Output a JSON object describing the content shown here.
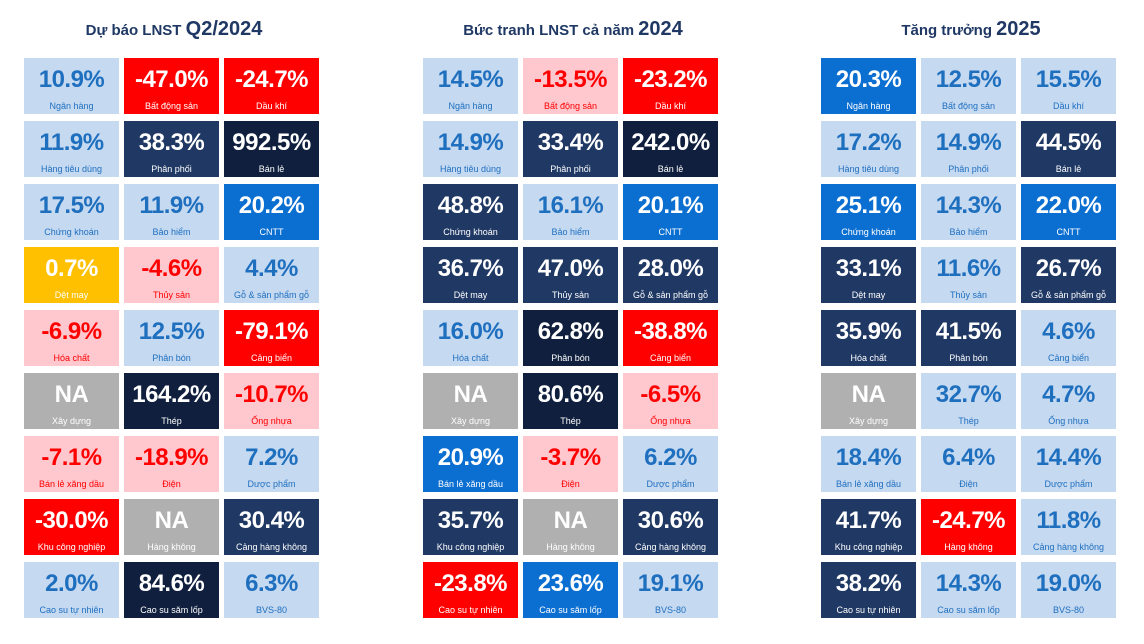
{
  "colors": {
    "light": "#c5d9f1",
    "mid": "#1f3864",
    "dark": "#0f1f3d",
    "blue": "#0b6ed1",
    "red": "#ff0000",
    "pink": "#ffc7ce",
    "yellow": "#ffc000",
    "gray": "#b0b0b0",
    "title": "#1f3864"
  },
  "chart_data": [
    {
      "type": "table",
      "title": "Dự báo LNST Q2/2024",
      "title_main": "Dự báo LNST ",
      "title_year": "Q2/2024",
      "cells": [
        {
          "value": "10.9%",
          "label": "Ngân hàng",
          "style": "light"
        },
        {
          "value": "-47.0%",
          "label": "Bất động sản",
          "style": "red"
        },
        {
          "value": "-24.7%",
          "label": "Dầu khí",
          "style": "red"
        },
        {
          "value": "11.9%",
          "label": "Hàng tiêu dùng",
          "style": "light"
        },
        {
          "value": "38.3%",
          "label": "Phân phối",
          "style": "mid"
        },
        {
          "value": "992.5%",
          "label": "Bán lẻ",
          "style": "dark"
        },
        {
          "value": "17.5%",
          "label": "Chứng khoán",
          "style": "light"
        },
        {
          "value": "11.9%",
          "label": "Bảo hiểm",
          "style": "light"
        },
        {
          "value": "20.2%",
          "label": "CNTT",
          "style": "blue"
        },
        {
          "value": "0.7%",
          "label": "Dệt may",
          "style": "yellow"
        },
        {
          "value": "-4.6%",
          "label": "Thủy sản",
          "style": "pink"
        },
        {
          "value": "4.4%",
          "label": "Gỗ & sản phẩm gỗ",
          "style": "light"
        },
        {
          "value": "-6.9%",
          "label": "Hóa chất",
          "style": "pink"
        },
        {
          "value": "12.5%",
          "label": "Phân bón",
          "style": "light"
        },
        {
          "value": "-79.1%",
          "label": "Cảng biển",
          "style": "red"
        },
        {
          "value": "NA",
          "label": "Xây dựng",
          "style": "gray"
        },
        {
          "value": "164.2%",
          "label": "Thép",
          "style": "dark"
        },
        {
          "value": "-10.7%",
          "label": "Ống nhựa",
          "style": "pink"
        },
        {
          "value": "-7.1%",
          "label": "Bán lẻ xăng dầu",
          "style": "pink"
        },
        {
          "value": "-18.9%",
          "label": "Điện",
          "style": "pink"
        },
        {
          "value": "7.2%",
          "label": "Dược phẩm",
          "style": "light"
        },
        {
          "value": "-30.0%",
          "label": "Khu công nghiệp",
          "style": "red"
        },
        {
          "value": "NA",
          "label": "Hàng không",
          "style": "gray"
        },
        {
          "value": "30.4%",
          "label": "Cảng hàng không",
          "style": "mid"
        },
        {
          "value": "2.0%",
          "label": "Cao su tự nhiên",
          "style": "light"
        },
        {
          "value": "84.6%",
          "label": "Cao su săm lốp",
          "style": "dark"
        },
        {
          "value": "6.3%",
          "label": "BVS-80",
          "style": "light"
        }
      ]
    },
    {
      "type": "table",
      "title": "Bức tranh LNST cả năm 2024",
      "title_main": "Bức tranh LNST cả năm ",
      "title_year": "2024",
      "cells": [
        {
          "value": "14.5%",
          "label": "Ngân hàng",
          "style": "light"
        },
        {
          "value": "-13.5%",
          "label": "Bất động sản",
          "style": "pink"
        },
        {
          "value": "-23.2%",
          "label": "Dầu khí",
          "style": "red"
        },
        {
          "value": "14.9%",
          "label": "Hàng tiêu dùng",
          "style": "light"
        },
        {
          "value": "33.4%",
          "label": "Phân phối",
          "style": "mid"
        },
        {
          "value": "242.0%",
          "label": "Bán lẻ",
          "style": "dark"
        },
        {
          "value": "48.8%",
          "label": "Chứng khoán",
          "style": "mid"
        },
        {
          "value": "16.1%",
          "label": "Bảo hiểm",
          "style": "light"
        },
        {
          "value": "20.1%",
          "label": "CNTT",
          "style": "blue"
        },
        {
          "value": "36.7%",
          "label": "Dệt may",
          "style": "mid"
        },
        {
          "value": "47.0%",
          "label": "Thủy sản",
          "style": "mid"
        },
        {
          "value": "28.0%",
          "label": "Gỗ & sản phẩm gỗ",
          "style": "mid"
        },
        {
          "value": "16.0%",
          "label": "Hóa chất",
          "style": "light"
        },
        {
          "value": "62.8%",
          "label": "Phân bón",
          "style": "dark"
        },
        {
          "value": "-38.8%",
          "label": "Cảng biển",
          "style": "red"
        },
        {
          "value": "NA",
          "label": "Xây dựng",
          "style": "gray"
        },
        {
          "value": "80.6%",
          "label": "Thép",
          "style": "dark"
        },
        {
          "value": "-6.5%",
          "label": "Ống nhựa",
          "style": "pink"
        },
        {
          "value": "20.9%",
          "label": "Bán lẻ xăng dầu",
          "style": "blue"
        },
        {
          "value": "-3.7%",
          "label": "Điện",
          "style": "pink"
        },
        {
          "value": "6.2%",
          "label": "Dược phẩm",
          "style": "light"
        },
        {
          "value": "35.7%",
          "label": "Khu công nghiệp",
          "style": "mid"
        },
        {
          "value": "NA",
          "label": "Hàng không",
          "style": "gray"
        },
        {
          "value": "30.6%",
          "label": "Cảng hàng không",
          "style": "mid"
        },
        {
          "value": "-23.8%",
          "label": "Cao su tự nhiên",
          "style": "red"
        },
        {
          "value": "23.6%",
          "label": "Cao su săm lốp",
          "style": "blue"
        },
        {
          "value": "19.1%",
          "label": "BVS-80",
          "style": "light"
        }
      ]
    },
    {
      "type": "table",
      "title": "Tăng trưởng 2025",
      "title_main": "Tăng trưởng ",
      "title_year": "2025",
      "cells": [
        {
          "value": "20.3%",
          "label": "Ngân hàng",
          "style": "blue"
        },
        {
          "value": "12.5%",
          "label": "Bất động sản",
          "style": "light"
        },
        {
          "value": "15.5%",
          "label": "Dầu khí",
          "style": "light"
        },
        {
          "value": "17.2%",
          "label": "Hàng tiêu dùng",
          "style": "light"
        },
        {
          "value": "14.9%",
          "label": "Phân phối",
          "style": "light"
        },
        {
          "value": "44.5%",
          "label": "Bán lẻ",
          "style": "mid"
        },
        {
          "value": "25.1%",
          "label": "Chứng khoán",
          "style": "blue"
        },
        {
          "value": "14.3%",
          "label": "Bảo hiểm",
          "style": "light"
        },
        {
          "value": "22.0%",
          "label": "CNTT",
          "style": "blue"
        },
        {
          "value": "33.1%",
          "label": "Dệt may",
          "style": "mid"
        },
        {
          "value": "11.6%",
          "label": "Thủy sản",
          "style": "light"
        },
        {
          "value": "26.7%",
          "label": "Gỗ & sản phẩm gỗ",
          "style": "mid"
        },
        {
          "value": "35.9%",
          "label": "Hóa chất",
          "style": "mid"
        },
        {
          "value": "41.5%",
          "label": "Phân bón",
          "style": "mid"
        },
        {
          "value": "4.6%",
          "label": "Cảng biển",
          "style": "light"
        },
        {
          "value": "NA",
          "label": "Xây dựng",
          "style": "gray"
        },
        {
          "value": "32.7%",
          "label": "Thép",
          "style": "light"
        },
        {
          "value": "4.7%",
          "label": "Ống nhựa",
          "style": "light"
        },
        {
          "value": "18.4%",
          "label": "Bán lẻ xăng dầu",
          "style": "light"
        },
        {
          "value": "6.4%",
          "label": "Điện",
          "style": "light"
        },
        {
          "value": "14.4%",
          "label": "Dược phẩm",
          "style": "light"
        },
        {
          "value": "41.7%",
          "label": "Khu công nghiệp",
          "style": "mid"
        },
        {
          "value": "-24.7%",
          "label": "Hàng không",
          "style": "red"
        },
        {
          "value": "11.8%",
          "label": "Cảng hàng không",
          "style": "light"
        },
        {
          "value": "38.2%",
          "label": "Cao su tự nhiên",
          "style": "mid"
        },
        {
          "value": "14.3%",
          "label": "Cao su săm lốp",
          "style": "light"
        },
        {
          "value": "19.0%",
          "label": "BVS-80",
          "style": "light"
        }
      ]
    }
  ]
}
